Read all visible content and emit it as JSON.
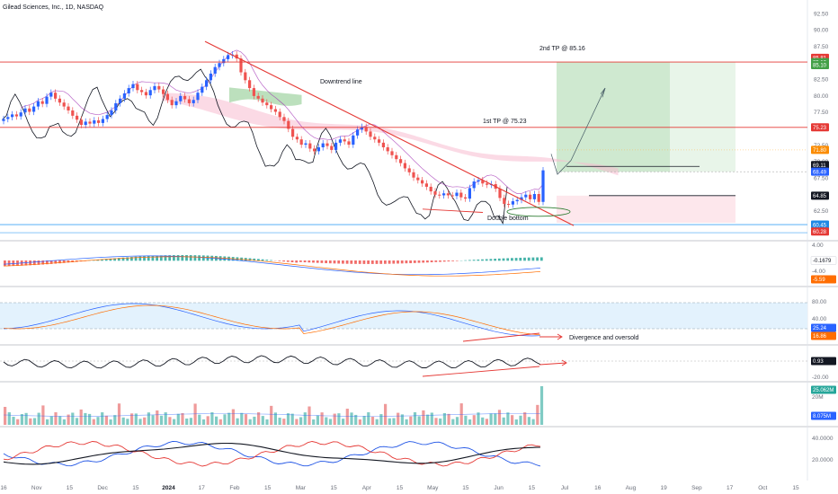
{
  "title": "Gilead Sciences, Inc., 1D, NASDAQ",
  "colors": {
    "up": "#2962ff",
    "down": "#ef5350",
    "tp_line": "#e53935",
    "trend": "#e53935",
    "cloud_green": "#a5d6a7",
    "cloud_red": "#f8bbd0",
    "target_zone": "#c8e6c9",
    "stop_zone": "#fde7ec",
    "blue_line": "#42a5f5",
    "band": "#e3f2fd"
  },
  "annotations": {
    "tp2": "2nd TP @ 85.16",
    "tp1": "1st TP @ 75.23",
    "downtrend": "Downtrend line",
    "double_bottom": "Double bottom",
    "divergence": "Divergence and oversold"
  },
  "badges": {
    "b1": "85.81",
    "b2": "85.16",
    "b3": "85.10",
    "b4": "75.23",
    "b5": "71.80",
    "b6": "69.11",
    "b7": "68.49",
    "b8": "64.85",
    "b9": "60.45",
    "b10": "60.28",
    "b11": "-0.1679",
    "b12": "-5.59",
    "b13": "25.24",
    "b14": "16.86",
    "b15": "0.93",
    "b16": "25.062M",
    "b17": "8.075M"
  },
  "chart_data": [
    {
      "type": "candlestick",
      "title": "Gilead Sciences, Inc., 1D, NASDAQ",
      "ylim": [
        58,
        93.5
      ],
      "yticks": [
        92.5,
        90,
        87.5,
        85,
        82.5,
        80,
        77.5,
        75,
        72.5,
        70,
        67.5,
        65,
        62.5,
        60
      ],
      "x_labels": [
        "16",
        "Nov",
        "15",
        "Dec",
        "15",
        "2024",
        "17",
        "Feb",
        "15",
        "Mar",
        "15",
        "Apr",
        "15",
        "May",
        "15",
        "Jun",
        "15",
        "Jul",
        "16",
        "Aug",
        "19",
        "Sep",
        "17",
        "Oct",
        "15"
      ],
      "close": [
        76.5,
        76.8,
        77.2,
        76.9,
        77.5,
        78.1,
        77.6,
        78.4,
        79.2,
        78.8,
        79.9,
        80.5,
        79.6,
        79.0,
        78.4,
        77.8,
        77.0,
        76.4,
        75.6,
        76.1,
        75.8,
        76.3,
        75.9,
        76.5,
        77.1,
        77.8,
        78.9,
        79.6,
        80.4,
        81.2,
        81.8,
        80.9,
        80.6,
        80.1,
        80.9,
        81.5,
        81.0,
        80.3,
        79.4,
        78.6,
        79.2,
        80.0,
        79.5,
        78.9,
        79.4,
        80.5,
        81.4,
        82.4,
        83.4,
        84.4,
        85.0,
        85.6,
        86.2,
        86.3,
        85.7,
        83.6,
        82.4,
        81.2,
        80.0,
        79.6,
        79.0,
        78.6,
        78.0,
        77.6,
        76.8,
        76.2,
        75.0,
        73.8,
        73.4,
        72.6,
        72.8,
        72.0,
        71.6,
        72.2,
        72.8,
        72.4,
        71.8,
        72.9,
        73.4,
        73.1,
        72.6,
        74.0,
        74.9,
        75.3,
        74.6,
        73.8,
        73.4,
        72.9,
        72.2,
        71.6,
        71.0,
        70.4,
        69.8,
        69.0,
        68.4,
        67.6,
        67.2,
        66.7,
        66.2,
        65.5,
        65.0,
        64.9,
        65.2,
        64.9,
        64.8,
        65.3,
        64.6,
        64.4,
        66.0,
        67.0,
        67.2,
        66.7,
        66.5,
        66.6,
        65.9,
        64.5,
        63.6,
        63.5,
        64.0,
        64.2,
        64.6,
        65.0,
        64.3,
        65.1,
        63.9,
        68.7
      ],
      "tp2": 85.16,
      "tp1": 75.23,
      "entry": 68.49,
      "stop": 64.85,
      "ref_line": 60.45
    },
    {
      "type": "histogram",
      "name": "MACD",
      "ylim": [
        -6.5,
        4.5
      ],
      "yticks": [
        4.0,
        -4.0
      ],
      "last_values": [
        -0.1679,
        -5.59
      ]
    },
    {
      "type": "line",
      "name": "Stochastic",
      "ylim": [
        5,
        85
      ],
      "yticks": [
        80,
        40
      ],
      "band": [
        20,
        60
      ],
      "last_values": [
        25.24,
        16.86
      ]
    },
    {
      "type": "line",
      "name": "Oscillator",
      "yticks": [
        -20.0
      ],
      "last_value": 0.93
    },
    {
      "type": "bar",
      "name": "Volume",
      "yticks": [
        "20M"
      ],
      "last_values": [
        "25.062M",
        "8.075M"
      ]
    },
    {
      "type": "line",
      "name": "DMI",
      "yticks": [
        40.0,
        20.0
      ]
    }
  ]
}
